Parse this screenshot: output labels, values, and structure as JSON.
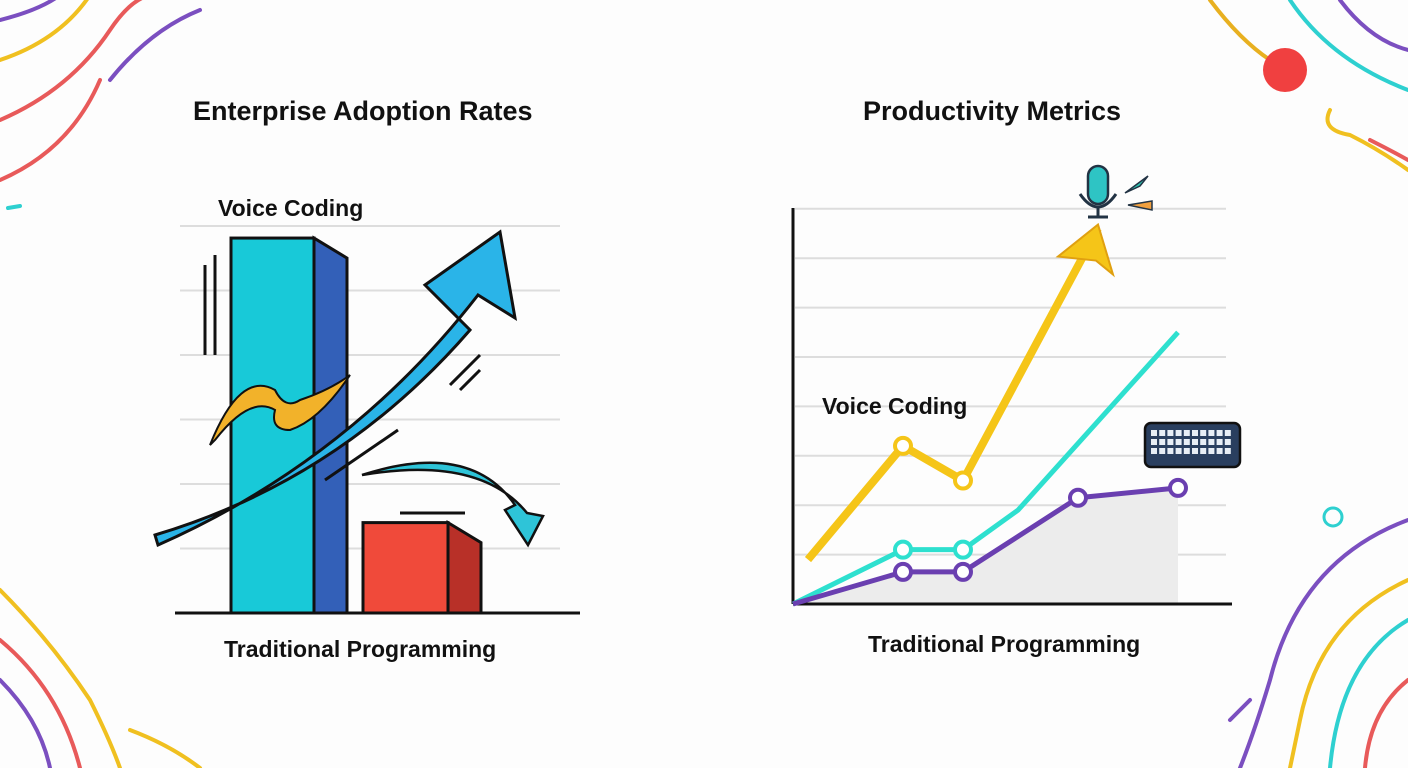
{
  "chart_data": [
    {
      "type": "bar",
      "title": "Enterprise Adoption Rates",
      "categories": [
        "Voice Coding",
        "Traditional Programming"
      ],
      "values": [
        5.6,
        1.35
      ],
      "ylim": [
        0,
        6
      ],
      "grid": true,
      "colors": [
        "#18c9d8",
        "#f04a3a"
      ],
      "annotations": [
        "Voice Coding",
        "Traditional Programming"
      ],
      "icons": [
        "rising-arrow-icon",
        "falling-arrow-icon"
      ]
    },
    {
      "type": "line",
      "title": "Productivity Metrics",
      "x": [
        0,
        1,
        2,
        3,
        4,
        5,
        6
      ],
      "ylim": [
        0,
        8
      ],
      "grid": true,
      "series": [
        {
          "color": "#f5c518",
          "points": [
            [
              0.15,
              0.9
            ],
            [
              1.1,
              3.2
            ],
            [
              1.7,
              2.5
            ],
            [
              3.05,
              7.6
            ]
          ],
          "markers": [
            1,
            2
          ],
          "ends_with_arrow": true
        },
        {
          "color": "#2ee0cf",
          "points": [
            [
              0,
              0
            ],
            [
              1.1,
              1.1
            ],
            [
              1.7,
              1.1
            ],
            [
              2.25,
              1.9
            ],
            [
              3.85,
              5.5
            ]
          ],
          "markers": [
            1,
            2
          ]
        },
        {
          "color": "#6a3fb0",
          "points": [
            [
              0,
              0
            ],
            [
              1.1,
              0.65
            ],
            [
              1.7,
              0.65
            ],
            [
              2.85,
              2.15
            ],
            [
              3.85,
              2.35
            ]
          ],
          "markers": [
            1,
            2,
            3,
            4
          ],
          "filled": true
        }
      ],
      "annotations": [
        "Voice Coding",
        "Traditional Programming"
      ],
      "icons": [
        "microphone-icon",
        "keyboard-icon"
      ]
    }
  ]
}
